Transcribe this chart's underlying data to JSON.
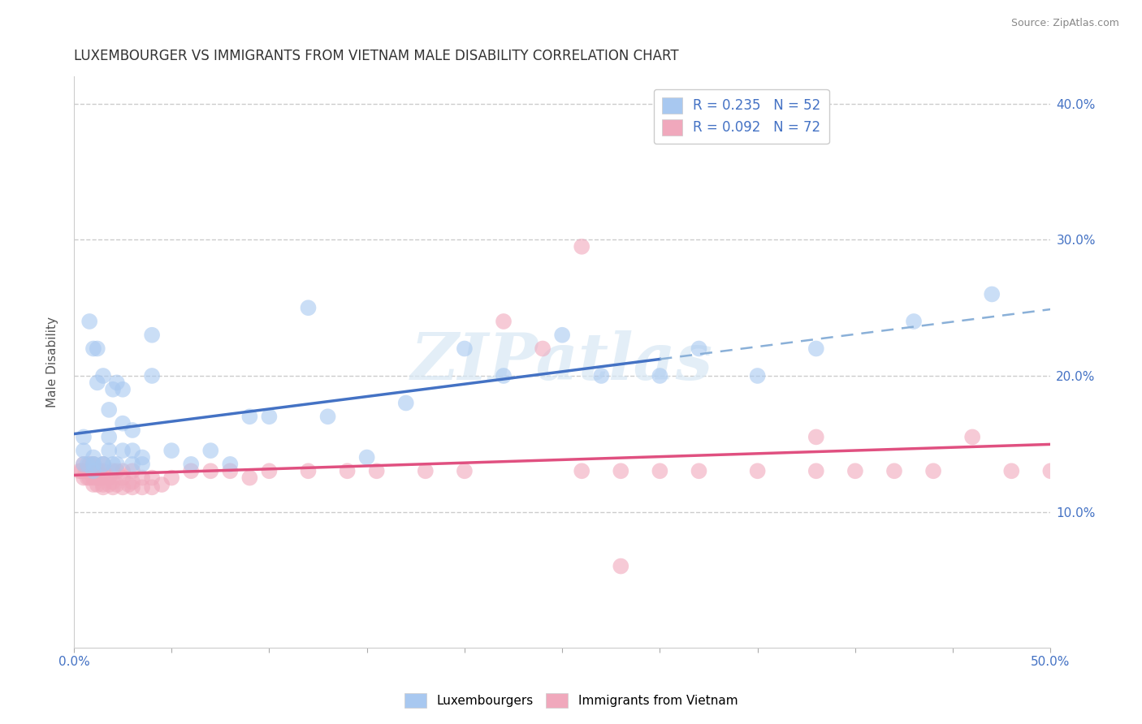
{
  "title": "LUXEMBOURGER VS IMMIGRANTS FROM VIETNAM MALE DISABILITY CORRELATION CHART",
  "source": "Source: ZipAtlas.com",
  "ylabel": "Male Disability",
  "xlim": [
    0.0,
    0.5
  ],
  "ylim": [
    0.0,
    0.42
  ],
  "color_blue": "#a8c8f0",
  "color_pink": "#f0a8bc",
  "line_blue": "#4472c4",
  "line_pink": "#e05080",
  "line_dash_color": "#8ab0d8",
  "R_blue": 0.235,
  "N_blue": 52,
  "R_pink": 0.092,
  "N_pink": 72,
  "blue_scatter_x": [
    0.005,
    0.005,
    0.005,
    0.007,
    0.008,
    0.01,
    0.01,
    0.01,
    0.01,
    0.01,
    0.012,
    0.012,
    0.015,
    0.015,
    0.015,
    0.018,
    0.018,
    0.018,
    0.02,
    0.02,
    0.022,
    0.022,
    0.025,
    0.025,
    0.025,
    0.03,
    0.03,
    0.03,
    0.035,
    0.035,
    0.04,
    0.04,
    0.05,
    0.06,
    0.07,
    0.08,
    0.09,
    0.1,
    0.12,
    0.13,
    0.15,
    0.17,
    0.2,
    0.22,
    0.25,
    0.27,
    0.3,
    0.32,
    0.35,
    0.38,
    0.43,
    0.47
  ],
  "blue_scatter_y": [
    0.135,
    0.145,
    0.155,
    0.135,
    0.24,
    0.13,
    0.135,
    0.14,
    0.22,
    0.135,
    0.195,
    0.22,
    0.135,
    0.2,
    0.135,
    0.145,
    0.155,
    0.175,
    0.135,
    0.19,
    0.195,
    0.135,
    0.145,
    0.165,
    0.19,
    0.135,
    0.145,
    0.16,
    0.135,
    0.14,
    0.2,
    0.23,
    0.145,
    0.135,
    0.145,
    0.135,
    0.17,
    0.17,
    0.25,
    0.17,
    0.14,
    0.18,
    0.22,
    0.2,
    0.23,
    0.2,
    0.2,
    0.22,
    0.2,
    0.22,
    0.24,
    0.26
  ],
  "pink_scatter_x": [
    0.003,
    0.004,
    0.005,
    0.005,
    0.006,
    0.007,
    0.008,
    0.008,
    0.008,
    0.009,
    0.01,
    0.01,
    0.01,
    0.01,
    0.01,
    0.012,
    0.012,
    0.012,
    0.013,
    0.013,
    0.015,
    0.015,
    0.015,
    0.015,
    0.015,
    0.018,
    0.018,
    0.02,
    0.02,
    0.02,
    0.022,
    0.022,
    0.025,
    0.025,
    0.025,
    0.028,
    0.03,
    0.03,
    0.03,
    0.035,
    0.035,
    0.04,
    0.04,
    0.045,
    0.05,
    0.06,
    0.07,
    0.08,
    0.09,
    0.1,
    0.12,
    0.14,
    0.155,
    0.18,
    0.2,
    0.22,
    0.24,
    0.26,
    0.28,
    0.3,
    0.32,
    0.35,
    0.38,
    0.4,
    0.42,
    0.44,
    0.46,
    0.48,
    0.38,
    0.26,
    0.5,
    0.28
  ],
  "pink_scatter_y": [
    0.13,
    0.13,
    0.125,
    0.135,
    0.13,
    0.125,
    0.125,
    0.13,
    0.135,
    0.13,
    0.12,
    0.125,
    0.13,
    0.135,
    0.13,
    0.12,
    0.125,
    0.13,
    0.125,
    0.13,
    0.118,
    0.12,
    0.125,
    0.13,
    0.135,
    0.12,
    0.125,
    0.118,
    0.122,
    0.13,
    0.12,
    0.13,
    0.118,
    0.125,
    0.13,
    0.12,
    0.118,
    0.122,
    0.13,
    0.118,
    0.125,
    0.118,
    0.125,
    0.12,
    0.125,
    0.13,
    0.13,
    0.13,
    0.125,
    0.13,
    0.13,
    0.13,
    0.13,
    0.13,
    0.13,
    0.24,
    0.22,
    0.13,
    0.13,
    0.13,
    0.13,
    0.13,
    0.13,
    0.13,
    0.13,
    0.13,
    0.155,
    0.13,
    0.155,
    0.295,
    0.13,
    0.06
  ],
  "watermark_text": "ZIPatlas",
  "legend_label_blue": "Luxembourgers",
  "legend_label_pink": "Immigrants from Vietnam"
}
